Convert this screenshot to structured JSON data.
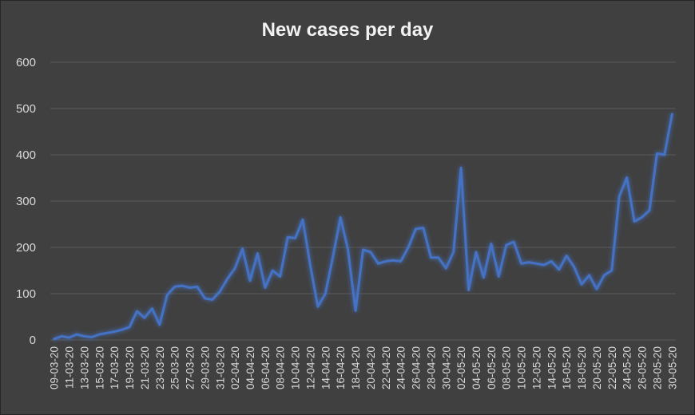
{
  "chart_data": {
    "type": "line",
    "title": "New cases per day",
    "xlabel": "",
    "ylabel": "",
    "ylim": [
      0,
      600
    ],
    "yticks": [
      0,
      100,
      200,
      300,
      400,
      500,
      600
    ],
    "grid": true,
    "legend": "none",
    "colors": {
      "background": "#404040",
      "line": "#4472c4",
      "grid": "#5a5a5a",
      "text": "#d9d9d9"
    },
    "x": [
      "09-03-20",
      "10-03-20",
      "11-03-20",
      "12-03-20",
      "13-03-20",
      "14-03-20",
      "15-03-20",
      "16-03-20",
      "17-03-20",
      "18-03-20",
      "19-03-20",
      "20-03-20",
      "21-03-20",
      "22-03-20",
      "23-03-20",
      "24-03-20",
      "25-03-20",
      "26-03-20",
      "27-03-20",
      "28-03-20",
      "29-03-20",
      "30-03-20",
      "31-03-20",
      "01-04-20",
      "02-04-20",
      "03-04-20",
      "04-04-20",
      "05-04-20",
      "06-04-20",
      "07-04-20",
      "08-04-20",
      "09-04-20",
      "10-04-20",
      "11-04-20",
      "12-04-20",
      "13-04-20",
      "14-04-20",
      "15-04-20",
      "16-04-20",
      "17-04-20",
      "18-04-20",
      "19-04-20",
      "20-04-20",
      "21-04-20",
      "22-04-20",
      "23-04-20",
      "24-04-20",
      "25-04-20",
      "26-04-20",
      "27-04-20",
      "28-04-20",
      "29-04-20",
      "30-04-20",
      "01-05-20",
      "02-05-20",
      "03-05-20",
      "04-05-20",
      "05-05-20",
      "06-05-20",
      "07-05-20",
      "08-05-20",
      "09-05-20",
      "10-05-20",
      "11-05-20",
      "12-05-20",
      "13-05-20",
      "14-05-20",
      "15-05-20",
      "16-05-20",
      "17-05-20",
      "18-05-20",
      "19-05-20",
      "20-05-20",
      "21-05-20",
      "22-05-20",
      "23-05-20",
      "24-05-20",
      "25-05-20",
      "26-05-20",
      "27-05-20",
      "28-05-20",
      "29-05-20",
      "30-05-20"
    ],
    "x_tick_labels": [
      "09-03-20",
      "11-03-20",
      "13-03-20",
      "15-03-20",
      "17-03-20",
      "19-03-20",
      "21-03-20",
      "23-03-20",
      "25-03-20",
      "27-03-20",
      "29-03-20",
      "31-03-20",
      "02-04-20",
      "04-04-20",
      "06-04-20",
      "08-04-20",
      "10-04-20",
      "12-04-20",
      "14-04-20",
      "16-04-20",
      "18-04-20",
      "20-04-20",
      "22-04-20",
      "24-04-20",
      "26-04-20",
      "28-04-20",
      "30-04-20",
      "02-05-20",
      "04-05-20",
      "06-05-20",
      "08-05-20",
      "10-05-20",
      "12-05-20",
      "14-05-20",
      "16-05-20",
      "18-05-20",
      "20-05-20",
      "22-05-20",
      "24-05-20",
      "26-05-20",
      "28-05-20",
      "30-05-20"
    ],
    "values": [
      2,
      8,
      5,
      12,
      8,
      6,
      12,
      15,
      18,
      22,
      28,
      62,
      48,
      68,
      33,
      97,
      115,
      117,
      113,
      115,
      90,
      87,
      105,
      132,
      155,
      197,
      128,
      187,
      113,
      150,
      137,
      222,
      220,
      260,
      160,
      72,
      100,
      180,
      265,
      195,
      63,
      195,
      190,
      165,
      170,
      172,
      170,
      200,
      240,
      242,
      178,
      178,
      155,
      190,
      372,
      108,
      190,
      135,
      208,
      137,
      205,
      212,
      165,
      168,
      165,
      162,
      170,
      152,
      182,
      158,
      120,
      140,
      110,
      140,
      150,
      310,
      351,
      256,
      265,
      280,
      403,
      400,
      488
    ]
  }
}
